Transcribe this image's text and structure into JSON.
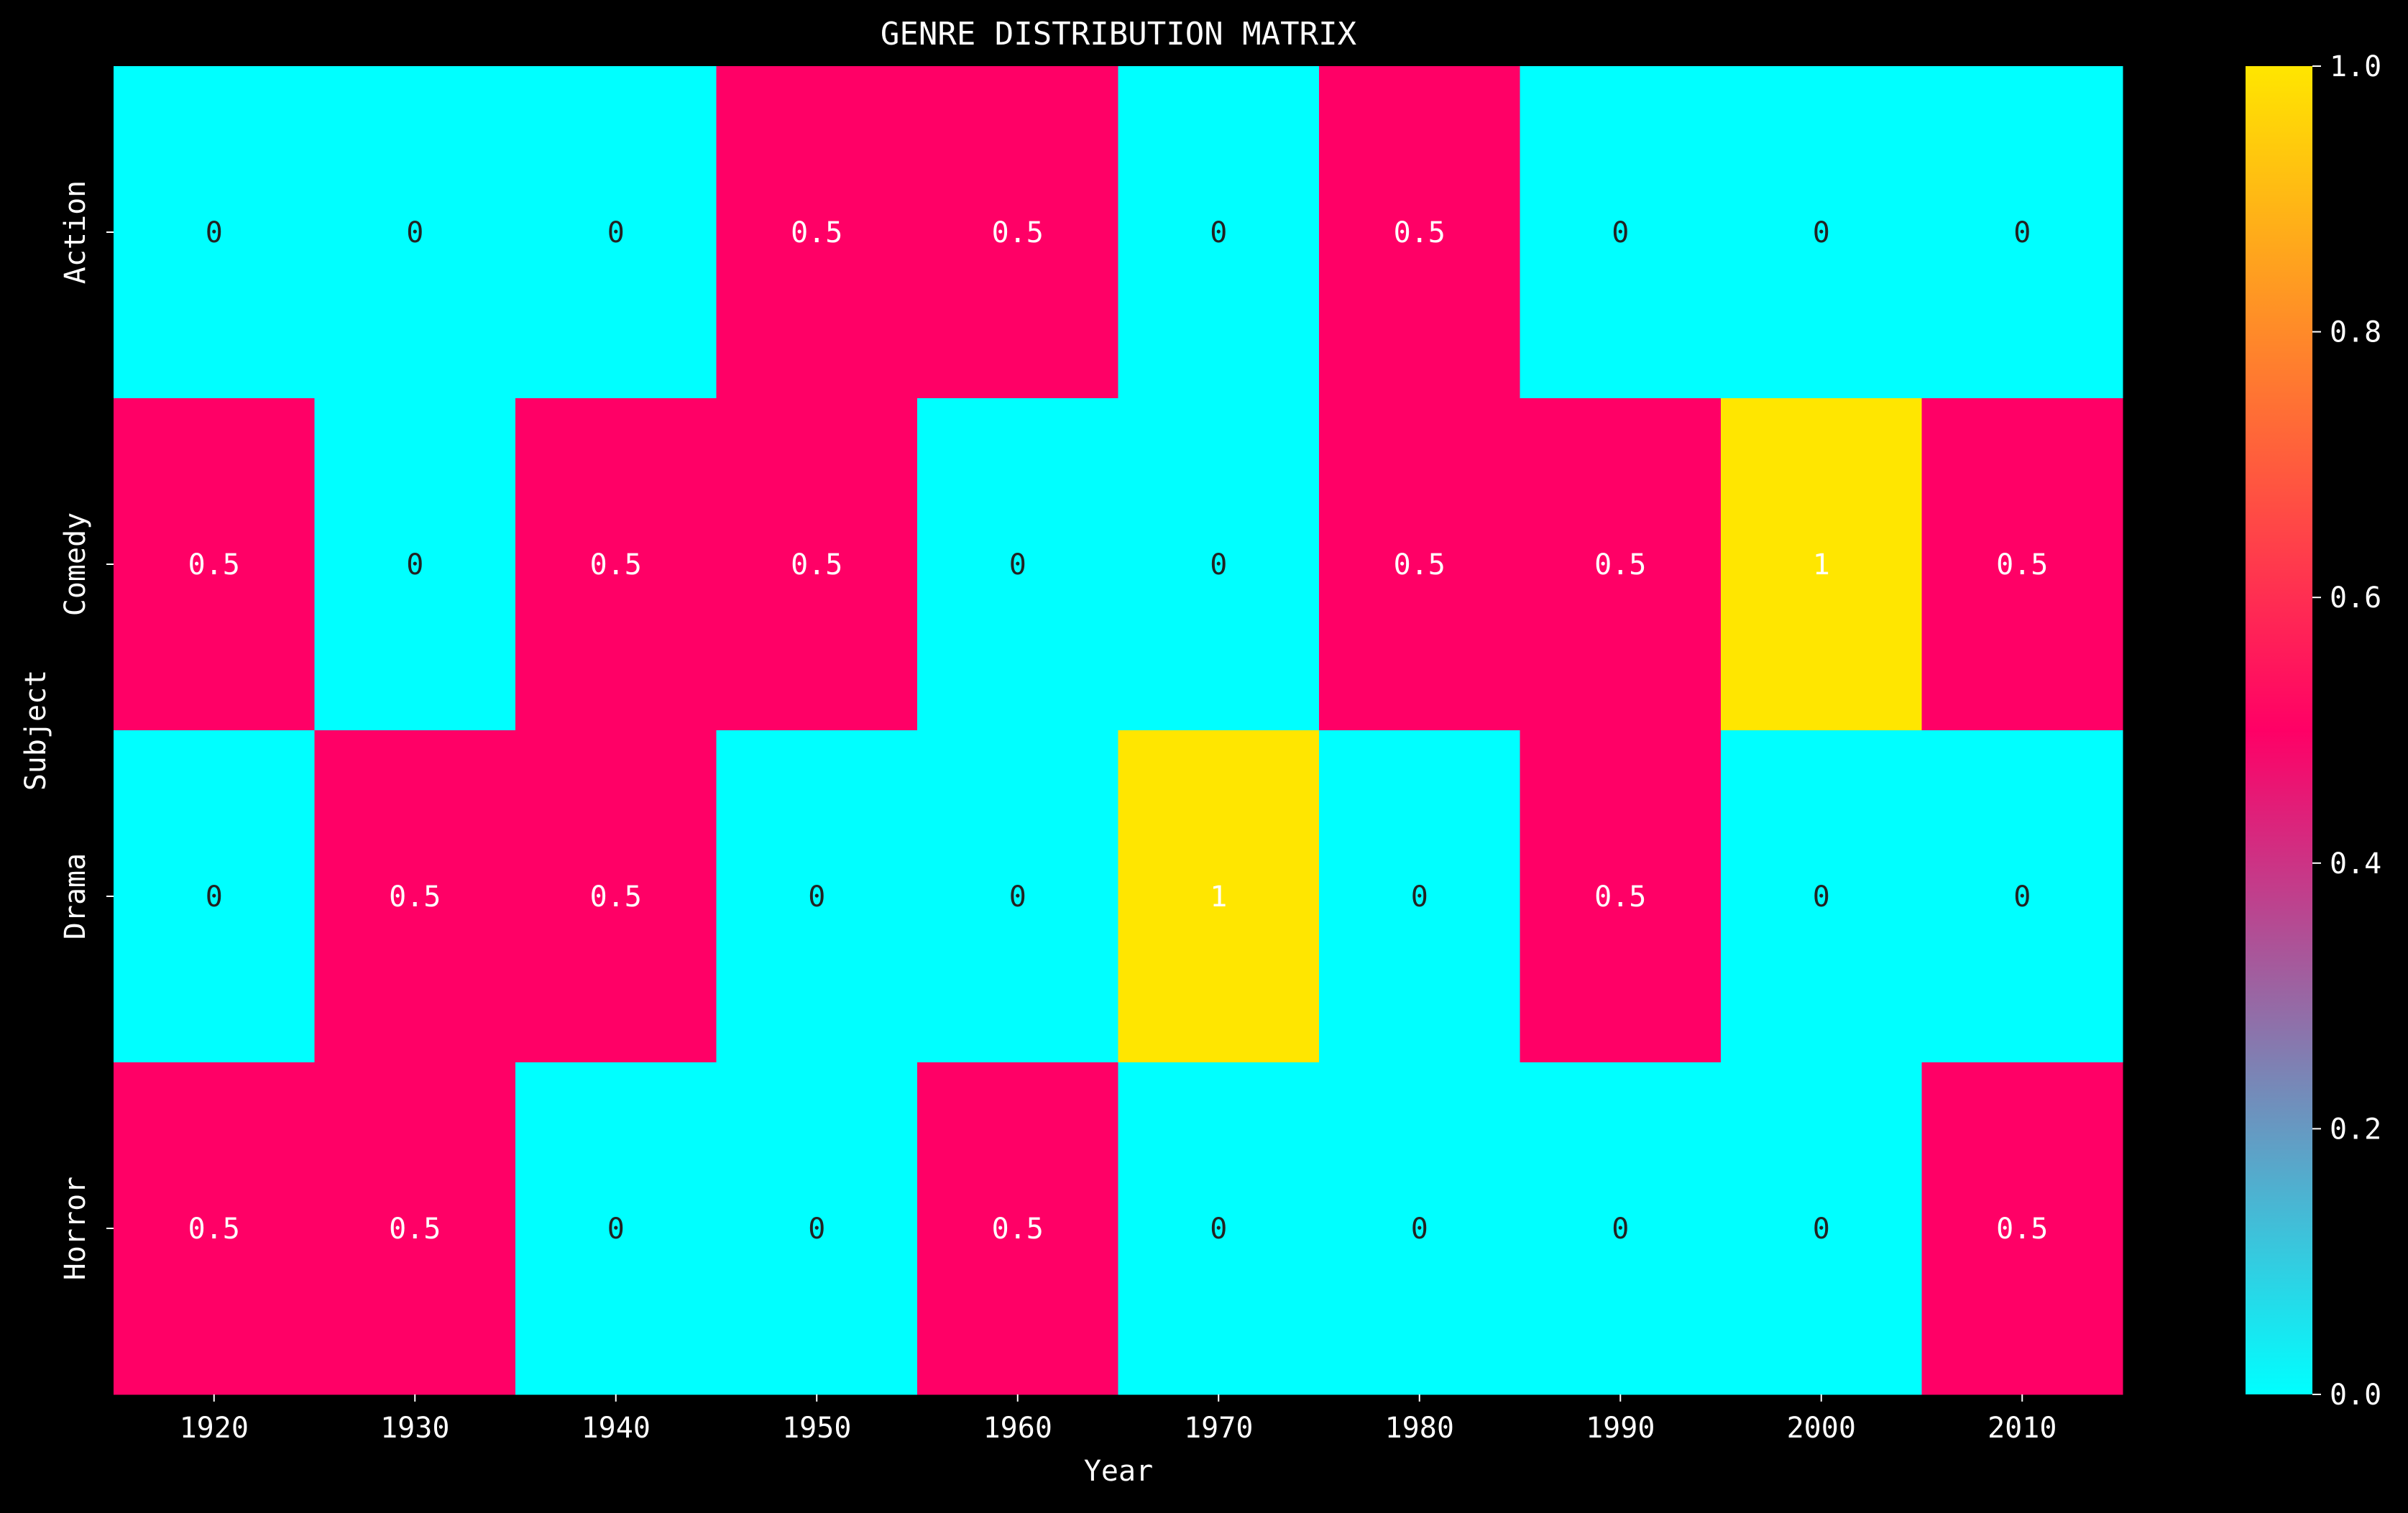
{
  "chart_data": {
    "type": "heatmap",
    "title": "GENRE DISTRIBUTION MATRIX",
    "xlabel": "Year",
    "ylabel": "Subject",
    "x_categories": [
      "1920",
      "1930",
      "1940",
      "1950",
      "1960",
      "1970",
      "1980",
      "1990",
      "2000",
      "2010"
    ],
    "y_categories": [
      "Action",
      "Comedy",
      "Drama",
      "Horror"
    ],
    "values": [
      [
        0,
        0,
        0,
        0.5,
        0.5,
        0,
        0.5,
        0,
        0,
        0
      ],
      [
        0.5,
        0,
        0.5,
        0.5,
        0,
        0,
        0.5,
        0.5,
        1,
        0.5
      ],
      [
        0,
        0.5,
        0.5,
        0,
        0,
        1,
        0,
        0.5,
        0,
        0
      ],
      [
        0.5,
        0.5,
        0,
        0,
        0.5,
        0,
        0,
        0,
        0,
        0.5
      ]
    ],
    "cell_labels": [
      [
        "0",
        "0",
        "0",
        "0.5",
        "0.5",
        "0",
        "0.5",
        "0",
        "0",
        "0"
      ],
      [
        "0.5",
        "0",
        "0.5",
        "0.5",
        "0",
        "0",
        "0.5",
        "0.5",
        "1",
        "0.5"
      ],
      [
        "0",
        "0.5",
        "0.5",
        "0",
        "0",
        "1",
        "0",
        "0.5",
        "0",
        "0"
      ],
      [
        "0.5",
        "0.5",
        "0",
        "0",
        "0.5",
        "0",
        "0",
        "0",
        "0",
        "0.5"
      ]
    ],
    "colorbar": {
      "range": [
        0.0,
        1.0
      ],
      "ticks": [
        0.0,
        0.2,
        0.4,
        0.6,
        0.8,
        1.0
      ],
      "tick_labels": [
        "0.0",
        "0.2",
        "0.4",
        "0.6",
        "0.8",
        "1.0"
      ],
      "stops": [
        "#00ffff",
        "#ff0066",
        "#ffe600"
      ]
    },
    "colors": {
      "background": "#000000",
      "text": "#ffffff",
      "low": "#00ffff",
      "mid": "#ff0066",
      "high": "#ffe600",
      "dark_label": "#222222",
      "light_label": "#ffffff"
    },
    "grid": false,
    "legend": "colorbar-right"
  }
}
